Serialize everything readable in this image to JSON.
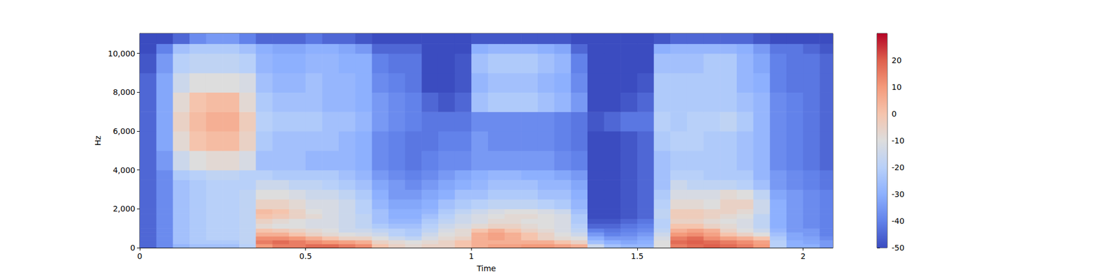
{
  "chart_data": {
    "type": "heatmap",
    "xlabel": "Time",
    "ylabel": "Hz",
    "xlim": [
      0,
      2.09
    ],
    "ylim": [
      0,
      11025
    ],
    "xticks": [
      0,
      0.5,
      1,
      1.5,
      2
    ],
    "yticks": [
      0,
      2000,
      4000,
      6000,
      8000,
      10000
    ],
    "time_edges": [
      0,
      0.05,
      0.1,
      0.15,
      0.2,
      0.25,
      0.3,
      0.35,
      0.4,
      0.45,
      0.5,
      0.55,
      0.6,
      0.65,
      0.7,
      0.75,
      0.8,
      0.85,
      0.9,
      0.95,
      1.0,
      1.05,
      1.1,
      1.15,
      1.2,
      1.25,
      1.3,
      1.35,
      1.4,
      1.45,
      1.5,
      1.55,
      1.6,
      1.65,
      1.7,
      1.75,
      1.8,
      1.85,
      1.9,
      1.95,
      2.0,
      2.05,
      2.09
    ],
    "freq_edges": [
      0,
      200,
      400,
      600,
      800,
      1000,
      1250,
      1500,
      1750,
      2000,
      2500,
      3000,
      3500,
      4000,
      5000,
      6000,
      7000,
      8000,
      9000,
      10000,
      10500,
      11025
    ],
    "values": [
      [
        -45,
        -38,
        -28,
        -25,
        -25,
        -25,
        -20,
        10,
        15,
        15,
        18,
        18,
        15,
        12,
        0,
        -5,
        -8,
        -5,
        -5,
        0,
        5,
        8,
        8,
        10,
        10,
        8,
        5,
        -15,
        -25,
        -28,
        -28,
        -10,
        15,
        18,
        20,
        18,
        15,
        10,
        -20,
        -30,
        -30,
        -35
      ],
      [
        -45,
        -38,
        -25,
        -22,
        -22,
        -22,
        -18,
        15,
        18,
        15,
        12,
        10,
        8,
        5,
        -5,
        -8,
        -10,
        -8,
        -5,
        0,
        5,
        5,
        5,
        5,
        5,
        0,
        -5,
        -25,
        -30,
        -32,
        -30,
        -10,
        18,
        20,
        18,
        15,
        12,
        8,
        -20,
        -30,
        -32,
        -35
      ],
      [
        -45,
        -38,
        -25,
        -22,
        -20,
        -20,
        -18,
        12,
        12,
        10,
        5,
        0,
        -5,
        -5,
        -10,
        -15,
        -18,
        -12,
        -8,
        -5,
        5,
        8,
        5,
        0,
        -5,
        -8,
        -10,
        -30,
        -35,
        -35,
        -32,
        -12,
        15,
        18,
        12,
        8,
        5,
        0,
        -22,
        -32,
        -33,
        -38
      ],
      [
        -45,
        -38,
        -25,
        -22,
        -20,
        -20,
        -18,
        5,
        5,
        0,
        -5,
        -8,
        -10,
        -12,
        -15,
        -20,
        -22,
        -15,
        -10,
        -8,
        5,
        8,
        5,
        0,
        -5,
        -10,
        -15,
        -35,
        -40,
        -38,
        -35,
        -15,
        10,
        12,
        8,
        0,
        -5,
        -10,
        -25,
        -32,
        -35,
        -40
      ],
      [
        -45,
        -38,
        -25,
        -22,
        -20,
        -20,
        -18,
        0,
        -2,
        -5,
        -8,
        -10,
        -15,
        -15,
        -18,
        -20,
        -22,
        -18,
        -12,
        -8,
        0,
        5,
        0,
        -5,
        -8,
        -12,
        -18,
        -40,
        -42,
        -40,
        -38,
        -18,
        5,
        8,
        5,
        -5,
        -10,
        -15,
        -28,
        -35,
        -35,
        -40
      ],
      [
        -45,
        -38,
        -25,
        -22,
        -20,
        -20,
        -18,
        -8,
        -10,
        -10,
        -12,
        -12,
        -15,
        -18,
        -22,
        -25,
        -25,
        -20,
        -15,
        -12,
        -8,
        -5,
        -5,
        -8,
        -10,
        -12,
        -20,
        -45,
        -45,
        -42,
        -40,
        -20,
        0,
        0,
        -5,
        -8,
        -12,
        -18,
        -30,
        -35,
        -38,
        -40
      ],
      [
        -45,
        -38,
        -25,
        -22,
        -20,
        -20,
        -18,
        -5,
        -8,
        -10,
        -12,
        -12,
        -15,
        -18,
        -25,
        -28,
        -28,
        -22,
        -18,
        -15,
        -12,
        -8,
        -8,
        -10,
        -10,
        -12,
        -22,
        -48,
        -48,
        -45,
        -42,
        -20,
        -5,
        -5,
        -8,
        -10,
        -12,
        -18,
        -30,
        -35,
        -38,
        -40
      ],
      [
        -45,
        -38,
        -25,
        -22,
        -20,
        -20,
        -18,
        0,
        -2,
        -5,
        -8,
        -12,
        -15,
        -18,
        -25,
        -30,
        -30,
        -25,
        -20,
        -15,
        -12,
        -10,
        -8,
        -8,
        -10,
        -12,
        -22,
        -50,
        -50,
        -48,
        -45,
        -18,
        -3,
        -3,
        -5,
        -8,
        -10,
        -18,
        -30,
        -35,
        -38,
        -40
      ],
      [
        -45,
        -38,
        -25,
        -22,
        -20,
        -20,
        -18,
        2,
        0,
        -5,
        -10,
        -12,
        -15,
        -20,
        -25,
        -30,
        -30,
        -28,
        -22,
        -18,
        -15,
        -12,
        -10,
        -10,
        -12,
        -15,
        -25,
        -50,
        -50,
        -48,
        -45,
        -18,
        -3,
        -3,
        -5,
        -5,
        -8,
        -15,
        -30,
        -35,
        -38,
        -40
      ],
      [
        -45,
        -38,
        -25,
        -22,
        -20,
        -20,
        -18,
        -5,
        -5,
        -8,
        -12,
        -12,
        -15,
        -20,
        -28,
        -32,
        -32,
        -30,
        -25,
        -22,
        -20,
        -18,
        -18,
        -18,
        -20,
        -22,
        -28,
        -50,
        -50,
        -48,
        -45,
        -20,
        -8,
        -8,
        -10,
        -5,
        -5,
        -15,
        -30,
        -35,
        -38,
        -40
      ],
      [
        -45,
        -38,
        -25,
        -22,
        -20,
        -20,
        -18,
        -10,
        -10,
        -12,
        -15,
        -15,
        -18,
        -22,
        -30,
        -35,
        -35,
        -32,
        -30,
        -25,
        -25,
        -22,
        -22,
        -22,
        -25,
        -25,
        -30,
        -50,
        -50,
        -48,
        -45,
        -22,
        -12,
        -12,
        -12,
        -8,
        -10,
        -18,
        -32,
        -35,
        -38,
        -40
      ],
      [
        -45,
        -38,
        -25,
        -22,
        -20,
        -20,
        -20,
        -15,
        -15,
        -18,
        -18,
        -20,
        -22,
        -25,
        -32,
        -35,
        -38,
        -35,
        -32,
        -30,
        -28,
        -25,
        -25,
        -25,
        -28,
        -28,
        -32,
        -50,
        -50,
        -48,
        -45,
        -25,
        -15,
        -18,
        -18,
        -18,
        -20,
        -25,
        -35,
        -38,
        -40,
        -42
      ],
      [
        -45,
        -38,
        -22,
        -20,
        -18,
        -18,
        -20,
        -20,
        -22,
        -22,
        -22,
        -22,
        -25,
        -28,
        -35,
        -38,
        -40,
        -38,
        -35,
        -32,
        -30,
        -28,
        -28,
        -30,
        -30,
        -32,
        -35,
        -50,
        -50,
        -48,
        -45,
        -25,
        -20,
        -20,
        -22,
        -22,
        -22,
        -28,
        -35,
        -38,
        -40,
        -42
      ],
      [
        -45,
        -35,
        -15,
        -10,
        -8,
        -8,
        -12,
        -25,
        -25,
        -25,
        -28,
        -28,
        -28,
        -30,
        -38,
        -40,
        -42,
        -40,
        -38,
        -38,
        -35,
        -35,
        -35,
        -35,
        -35,
        -38,
        -40,
        -50,
        -50,
        -48,
        -45,
        -25,
        -22,
        -22,
        -22,
        -22,
        -25,
        -28,
        -38,
        -40,
        -42,
        -45
      ],
      [
        -45,
        -32,
        -8,
        0,
        2,
        2,
        -5,
        -22,
        -25,
        -25,
        -25,
        -25,
        -28,
        -30,
        -38,
        -40,
        -42,
        -42,
        -40,
        -40,
        -35,
        -38,
        -38,
        -38,
        -38,
        -40,
        -42,
        -50,
        -50,
        -48,
        -45,
        -22,
        -20,
        -20,
        -22,
        -22,
        -25,
        -28,
        -38,
        -40,
        -42,
        -45
      ],
      [
        -45,
        -32,
        -5,
        2,
        5,
        5,
        -3,
        -20,
        -22,
        -22,
        -22,
        -25,
        -25,
        -28,
        -35,
        -38,
        -40,
        -42,
        -42,
        -42,
        -38,
        -38,
        -38,
        -38,
        -38,
        -40,
        -42,
        -48,
        -45,
        -42,
        -42,
        -20,
        -22,
        -20,
        -20,
        -18,
        -22,
        -28,
        -38,
        -40,
        -42,
        -45
      ],
      [
        -45,
        -32,
        -8,
        0,
        2,
        2,
        -8,
        -22,
        -25,
        -25,
        -25,
        -28,
        -28,
        -30,
        -35,
        -38,
        -40,
        -45,
        -48,
        -45,
        -25,
        -22,
        -22,
        -22,
        -25,
        -28,
        -35,
        -50,
        -50,
        -48,
        -45,
        -22,
        -22,
        -22,
        -22,
        -22,
        -25,
        -28,
        -38,
        -40,
        -42,
        -45
      ],
      [
        -45,
        -32,
        -15,
        -10,
        -10,
        -10,
        -12,
        -25,
        -28,
        -28,
        -25,
        -28,
        -28,
        -30,
        -38,
        -40,
        -42,
        -50,
        -50,
        -48,
        -28,
        -25,
        -25,
        -25,
        -28,
        -30,
        -38,
        -50,
        -50,
        -50,
        -48,
        -22,
        -22,
        -22,
        -22,
        -22,
        -28,
        -30,
        -40,
        -42,
        -42,
        -45
      ],
      [
        -48,
        -35,
        -20,
        -18,
        -18,
        -18,
        -20,
        -28,
        -30,
        -30,
        -28,
        -28,
        -30,
        -30,
        -40,
        -42,
        -42,
        -50,
        -50,
        -48,
        -25,
        -22,
        -22,
        -22,
        -25,
        -28,
        -40,
        -50,
        -50,
        -50,
        -50,
        -25,
        -25,
        -25,
        -22,
        -22,
        -28,
        -32,
        -40,
        -42,
        -42,
        -45
      ],
      [
        -50,
        -40,
        -25,
        -22,
        -22,
        -22,
        -25,
        -30,
        -32,
        -32,
        -30,
        -30,
        -32,
        -35,
        -45,
        -45,
        -45,
        -50,
        -50,
        -50,
        -30,
        -28,
        -28,
        -28,
        -30,
        -32,
        -45,
        -50,
        -50,
        -50,
        -50,
        -30,
        -28,
        -28,
        -28,
        -28,
        -30,
        -35,
        -42,
        -42,
        -45,
        -48
      ],
      [
        -50,
        -50,
        -45,
        -38,
        -35,
        -35,
        -40,
        -45,
        -45,
        -45,
        -42,
        -45,
        -45,
        -48,
        -50,
        -50,
        -50,
        -50,
        -50,
        -50,
        -48,
        -48,
        -48,
        -48,
        -48,
        -48,
        -50,
        -50,
        -50,
        -50,
        -50,
        -48,
        -45,
        -45,
        -45,
        -45,
        -45,
        -48,
        -50,
        -50,
        -50,
        -50
      ]
    ],
    "colorbar_range": [
      -50,
      30
    ],
    "colorbar_ticks": [
      -50,
      -40,
      -30,
      -20,
      -10,
      0,
      10,
      20
    ]
  }
}
